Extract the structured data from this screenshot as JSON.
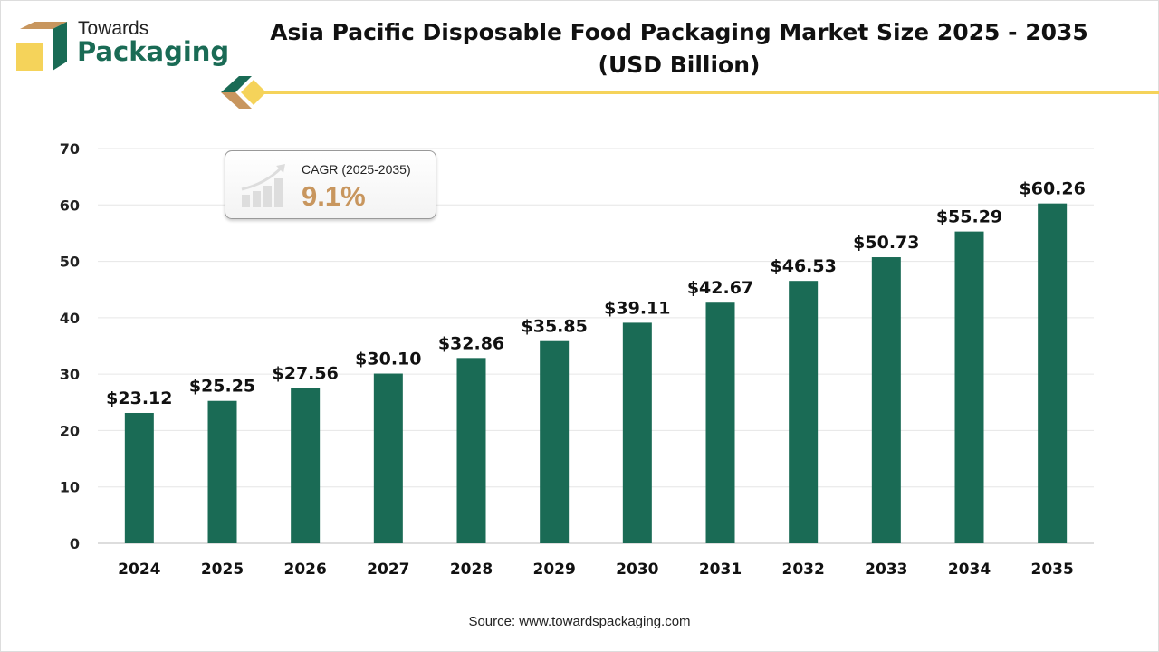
{
  "logo": {
    "line1": "Towards",
    "line2": "Packaging"
  },
  "title_line1": "Asia Pacific Disposable Food Packaging Market Size 2025 - 2035",
  "title_line2": "(USD Billion)",
  "cagr": {
    "label": "CAGR (2025-2035)",
    "value": "9.1%",
    "icon": "growth-bar-chart-icon"
  },
  "source": "Source: www.towardspackaging.com",
  "colors": {
    "bar": "#1a6b55",
    "accent": "#f5d35a",
    "brand_tan": "#c8965e"
  },
  "chart_data": {
    "type": "bar",
    "categories": [
      "2024",
      "2025",
      "2026",
      "2027",
      "2028",
      "2029",
      "2030",
      "2031",
      "2032",
      "2033",
      "2034",
      "2035"
    ],
    "values": [
      23.12,
      25.25,
      27.56,
      30.1,
      32.86,
      35.85,
      39.11,
      42.67,
      46.53,
      50.73,
      55.29,
      60.26
    ],
    "data_labels": [
      "$23.12",
      "$25.25",
      "$27.56",
      "$30.10",
      "$32.86",
      "$35.85",
      "$39.11",
      "$42.67",
      "$46.53",
      "$50.73",
      "$55.29",
      "$60.26"
    ],
    "ylim": [
      0,
      70
    ],
    "yticks": [
      0,
      10,
      20,
      30,
      40,
      50,
      60,
      70
    ],
    "grid": true,
    "xlabel": "",
    "ylabel": ""
  }
}
